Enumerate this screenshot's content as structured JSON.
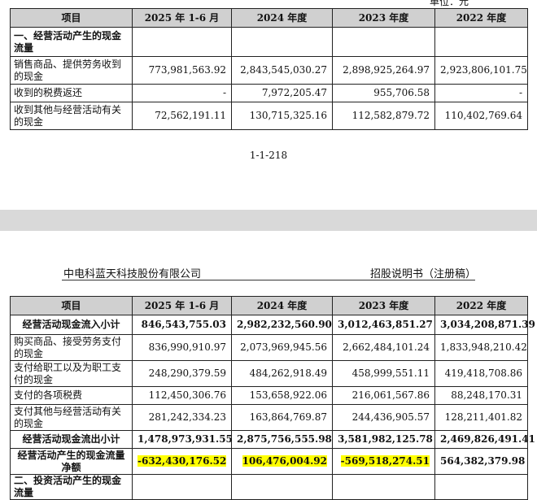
{
  "page1": {
    "unit": "单位：元",
    "page_number": "1-1-218",
    "headers": [
      "项目",
      "2025 年 1-6 月",
      "2024 年度",
      "2023 年度",
      "2022 年度"
    ],
    "rows": [
      {
        "label": "一、经营活动产生的现金流量",
        "values": [
          "",
          "",
          "",
          ""
        ]
      },
      {
        "label": "销售商品、提供劳务收到的现金",
        "values": [
          "773,981,563.92",
          "2,843,545,030.27",
          "2,898,925,264.97",
          "2,923,806,101.75"
        ]
      },
      {
        "label": "收到的税费返还",
        "values": [
          "-",
          "7,972,205.47",
          "955,706.58",
          "-"
        ]
      },
      {
        "label": "收到其他与经营活动有关的现金",
        "values": [
          "72,562,191.11",
          "130,715,325.16",
          "112,582,879.72",
          "110,402,769.64"
        ]
      }
    ]
  },
  "page2": {
    "header_left": "中电科蓝天科技股份有限公司",
    "header_right": "招股说明书（注册稿）",
    "headers": [
      "项目",
      "2025 年 1-6 月",
      "2024 年度",
      "2023 年度",
      "2022 年度"
    ],
    "rows": [
      {
        "label": "经营活动现金流入小计",
        "values": [
          "846,543,755.03",
          "2,982,232,560.90",
          "3,012,463,851.27",
          "3,034,208,871.39"
        ]
      },
      {
        "label": "购买商品、接受劳务支付的现金",
        "values": [
          "836,990,910.97",
          "2,073,969,945.56",
          "2,662,484,101.24",
          "1,833,948,210.42"
        ]
      },
      {
        "label": "支付给职工以及为职工支付的现金",
        "values": [
          "248,290,379.59",
          "484,262,918.49",
          "458,999,551.11",
          "419,418,708.86"
        ]
      },
      {
        "label": "支付的各项税费",
        "values": [
          "112,450,306.76",
          "153,658,922.06",
          "216,061,567.86",
          "88,248,170.31"
        ]
      },
      {
        "label": "支付其他与经营活动有关的现金",
        "values": [
          "281,242,334.23",
          "163,864,769.87",
          "244,436,905.57",
          "128,211,401.82"
        ]
      },
      {
        "label": "经营活动现金流出小计",
        "values": [
          "1,478,973,931.55",
          "2,875,756,555.98",
          "3,581,982,125.78",
          "2,469,826,491.41"
        ]
      },
      {
        "label": "经营活动产生的现金流量净额",
        "values": [
          "-632,430,176.52",
          "106,476,004.92",
          "-569,518,274.51",
          "564,382,379.98"
        ]
      },
      {
        "label": "二、投资活动产生的现金流量",
        "values": [
          "",
          "",
          "",
          ""
        ]
      }
    ]
  },
  "colors": {
    "header_bg": "#d0d0d0",
    "highlight": "#ffff00",
    "gap": "#d9d9d9"
  }
}
